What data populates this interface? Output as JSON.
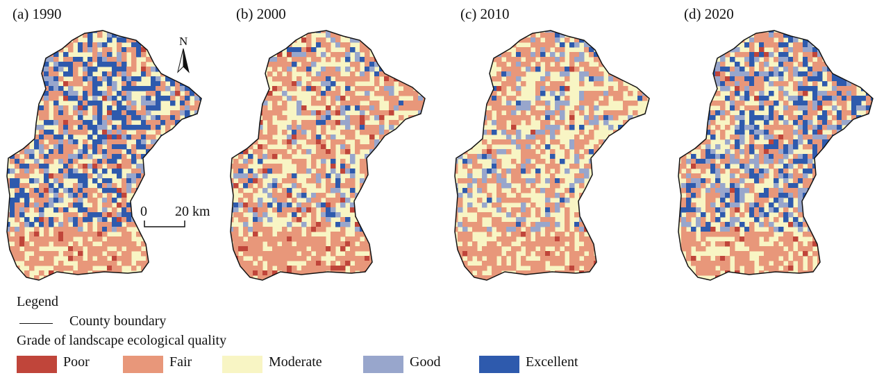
{
  "panels": [
    {
      "title": "(a) 1990",
      "weights": [
        0.02,
        0.33,
        0.27,
        0.13,
        0.25
      ]
    },
    {
      "title": "(b) 2000",
      "weights": [
        0.05,
        0.38,
        0.4,
        0.12,
        0.05
      ]
    },
    {
      "title": "(c) 2010",
      "weights": [
        0.01,
        0.36,
        0.46,
        0.13,
        0.04
      ]
    },
    {
      "title": "(d) 2020",
      "weights": [
        0.02,
        0.3,
        0.3,
        0.16,
        0.22
      ]
    }
  ],
  "north_arrow": {
    "label": "N"
  },
  "scale_bar": {
    "start_label": "0",
    "end_label": "20 km"
  },
  "legend": {
    "title": "Legend",
    "boundary_label": "County boundary",
    "grade_title": "Grade of landscape ecological quality",
    "grades": [
      {
        "label": "Poor",
        "color": "#c0453a"
      },
      {
        "label": "Fair",
        "color": "#e8977a"
      },
      {
        "label": "Moderate",
        "color": "#f8f5c4"
      },
      {
        "label": "Good",
        "color": "#98a6cc"
      },
      {
        "label": "Excellent",
        "color": "#2e5aad"
      }
    ]
  }
}
